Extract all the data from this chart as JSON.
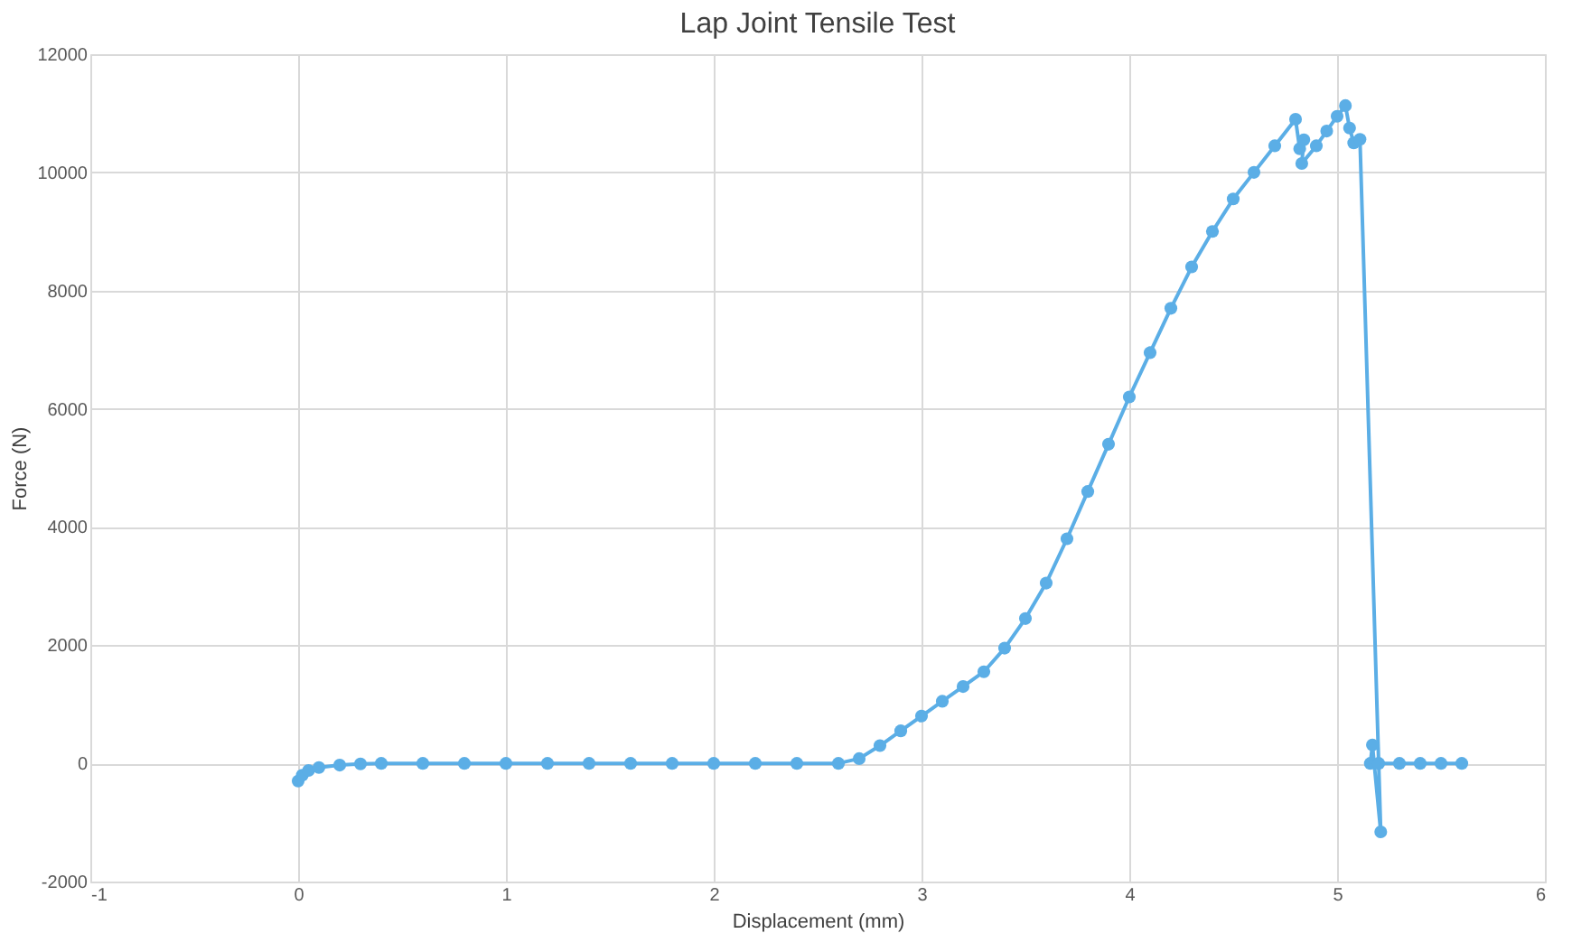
{
  "chart_data": {
    "type": "line",
    "title": "Lap Joint Tensile Test",
    "xlabel": "Displacement (mm)",
    "ylabel": "Force (N)",
    "xlim": [
      -1,
      6
    ],
    "xticks": [
      -1,
      0,
      1,
      2,
      3,
      4,
      5,
      6
    ],
    "ylim": [
      -2000,
      12000
    ],
    "yticks": [
      -2000,
      0,
      2000,
      4000,
      6000,
      8000,
      10000,
      12000
    ],
    "grid": true,
    "marker": "circle",
    "line_style": "solid",
    "series": [
      {
        "color": "#5baee6",
        "x": [
          0,
          0.02,
          0.05,
          0.1,
          0.2,
          0.3,
          0.4,
          0.6,
          0.8,
          1.0,
          1.2,
          1.4,
          1.6,
          1.8,
          2.0,
          2.2,
          2.4,
          2.6,
          2.7,
          2.8,
          2.9,
          3.0,
          3.1,
          3.2,
          3.3,
          3.4,
          3.5,
          3.6,
          3.7,
          3.8,
          3.9,
          4.0,
          4.1,
          4.2,
          4.3,
          4.4,
          4.5,
          4.6,
          4.7,
          4.8,
          4.82,
          4.84,
          4.83,
          4.9,
          4.95,
          5.0,
          5.04,
          5.06,
          5.08,
          5.11,
          5.21,
          5.17,
          5.16,
          5.2,
          5.3,
          5.4,
          5.5,
          5.6
        ],
        "values": [
          -300,
          -200,
          -120,
          -70,
          -30,
          -10,
          0,
          0,
          0,
          0,
          0,
          0,
          0,
          0,
          0,
          0,
          0,
          0,
          80,
          300,
          550,
          800,
          1050,
          1300,
          1550,
          1950,
          2450,
          3050,
          3800,
          4600,
          5400,
          6200,
          6950,
          7700,
          8400,
          9000,
          9550,
          10000,
          10450,
          10900,
          10400,
          10550,
          10150,
          10450,
          10700,
          10950,
          11130,
          10750,
          10500,
          10560,
          -1160,
          310,
          0,
          0,
          0,
          0,
          0,
          0
        ]
      }
    ]
  }
}
